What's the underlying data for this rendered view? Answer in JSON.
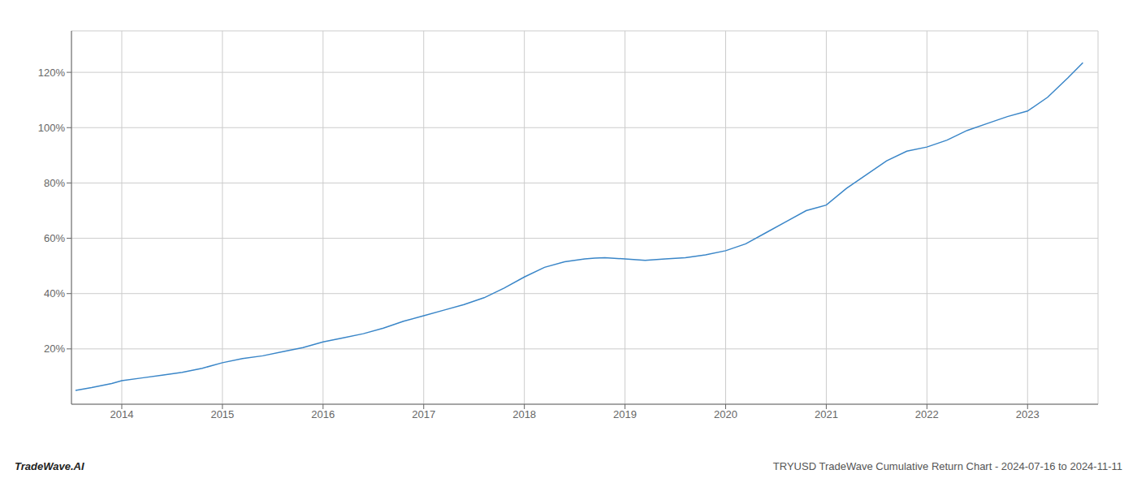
{
  "chart_data": {
    "type": "line",
    "x": [
      2013.54,
      2013.7,
      2013.9,
      2014.0,
      2014.2,
      2014.4,
      2014.6,
      2014.8,
      2015.0,
      2015.2,
      2015.4,
      2015.6,
      2015.8,
      2016.0,
      2016.2,
      2016.4,
      2016.6,
      2016.8,
      2017.0,
      2017.2,
      2017.4,
      2017.6,
      2017.8,
      2018.0,
      2018.2,
      2018.4,
      2018.5,
      2018.6,
      2018.7,
      2018.8,
      2019.0,
      2019.2,
      2019.4,
      2019.6,
      2019.8,
      2020.0,
      2020.2,
      2020.4,
      2020.6,
      2020.8,
      2021.0,
      2021.2,
      2021.4,
      2021.6,
      2021.8,
      2022.0,
      2022.2,
      2022.4,
      2022.6,
      2022.8,
      2023.0,
      2023.2,
      2023.4,
      2023.55
    ],
    "values": [
      5.0,
      6.0,
      7.5,
      8.5,
      9.5,
      10.5,
      11.5,
      13.0,
      15.0,
      16.5,
      17.5,
      19.0,
      20.5,
      22.5,
      24.0,
      25.5,
      27.5,
      30.0,
      32.0,
      34.0,
      36.0,
      38.5,
      42.0,
      46.0,
      49.5,
      51.5,
      52.0,
      52.5,
      52.8,
      53.0,
      52.5,
      52.0,
      52.5,
      53.0,
      54.0,
      55.5,
      58.0,
      62.0,
      66.0,
      70.0,
      72.0,
      78.0,
      83.0,
      88.0,
      91.5,
      93.0,
      95.5,
      99.0,
      101.5,
      104.0,
      106.0,
      111.0,
      118.0,
      123.5
    ],
    "color": "#3a86c8",
    "xlim": [
      2013.5,
      2023.7
    ],
    "ylim": [
      0,
      135
    ],
    "xticks": [
      2014,
      2015,
      2016,
      2017,
      2018,
      2019,
      2020,
      2021,
      2022,
      2023
    ],
    "yticks": [
      {
        "value": 20,
        "label": "20%"
      },
      {
        "value": 40,
        "label": "40%"
      },
      {
        "value": 60,
        "label": "60%"
      },
      {
        "value": 80,
        "label": "80%"
      },
      {
        "value": 100,
        "label": "100%"
      },
      {
        "value": 120,
        "label": "120%"
      }
    ],
    "grid": true,
    "annotations": [
      "TradeWave.AI",
      "TRYUSD TradeWave Cumulative Return Chart - 2024-07-16 to 2024-11-11"
    ]
  }
}
